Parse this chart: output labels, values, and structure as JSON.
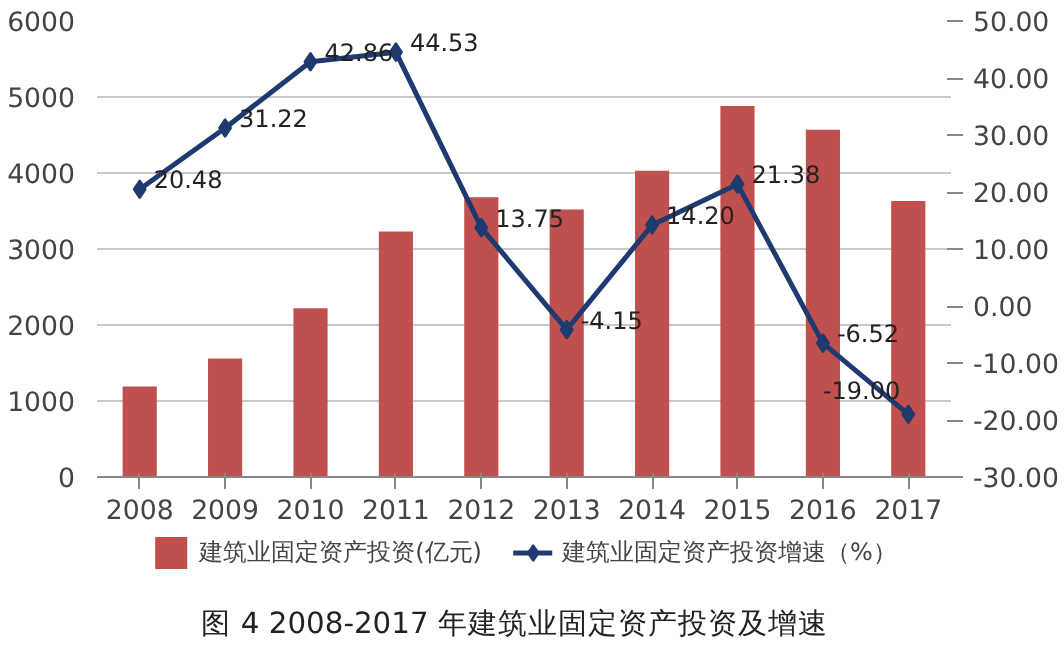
{
  "chart_data": {
    "type": "bar",
    "title": "图 4   2008-2017 年建筑业固定资产投资及增速",
    "categories": [
      "2008",
      "2009",
      "2010",
      "2011",
      "2012",
      "2013",
      "2014",
      "2015",
      "2016",
      "2017"
    ],
    "series": [
      {
        "name": "建筑业固定资产投资(亿元)",
        "color": "#c0504d",
        "values": [
          1190,
          1560,
          2220,
          3230,
          3680,
          3520,
          4030,
          4880,
          4570,
          3630
        ]
      },
      {
        "name": "建筑业固定资产投资增速（%）",
        "type": "line",
        "axis": "y2",
        "color": "#1f3a6e",
        "marker": "diamond",
        "values": [
          20.48,
          31.22,
          42.86,
          44.53,
          13.75,
          -4.15,
          14.2,
          21.38,
          -6.52,
          -19.0
        ],
        "value_labels": [
          "20.48",
          "31.22",
          "42.86",
          "44.53",
          "13.75",
          "-4.15",
          "14.20",
          "21.38",
          "-6.52",
          "-19.00"
        ]
      }
    ],
    "ylim": [
      0,
      6000
    ],
    "yticks": [
      0,
      1000,
      2000,
      3000,
      4000,
      5000,
      6000
    ],
    "y2lim": [
      -30,
      50
    ],
    "y2ticks": [
      {
        "value": -30,
        "label": "-30.00"
      },
      {
        "value": -20,
        "label": "-20.00"
      },
      {
        "value": -10,
        "label": "-10.00"
      },
      {
        "value": 0,
        "label": "0.00"
      },
      {
        "value": 10,
        "label": "10.00"
      },
      {
        "value": 20,
        "label": "20.00"
      },
      {
        "value": 30,
        "label": "30.00"
      },
      {
        "value": 40,
        "label": "40.00"
      },
      {
        "value": 50,
        "label": "50.00"
      }
    ],
    "grid": "y",
    "legend": "bottom"
  }
}
